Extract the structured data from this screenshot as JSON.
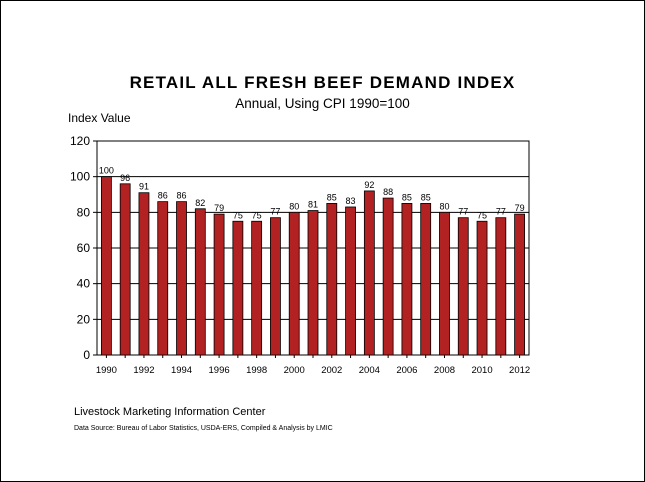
{
  "chart_data": {
    "type": "bar",
    "title": "RETAIL ALL FRESH BEEF DEMAND INDEX",
    "subtitle": "Annual, Using CPI 1990=100",
    "ylabel": "Index Value",
    "xlabel": "",
    "ylim": [
      0,
      120
    ],
    "yticks": [
      0,
      20,
      40,
      60,
      80,
      100,
      120
    ],
    "categories": [
      "1990",
      "1991",
      "1992",
      "1993",
      "1994",
      "1995",
      "1996",
      "1997",
      "1998",
      "1999",
      "2000",
      "2001",
      "2002",
      "2003",
      "2004",
      "2005",
      "2006",
      "2007",
      "2008",
      "2009",
      "2010",
      "2011",
      "2012"
    ],
    "xtick_labels": [
      "1990",
      "1992",
      "1994",
      "1996",
      "1998",
      "2000",
      "2002",
      "2004",
      "2006",
      "2008",
      "2010",
      "2012"
    ],
    "values": [
      100,
      96,
      91,
      86,
      86,
      82,
      79,
      75,
      75,
      77,
      80,
      81,
      85,
      83,
      92,
      88,
      85,
      85,
      80,
      77,
      75,
      77,
      79
    ],
    "grid": true,
    "bar_color": "#b22222",
    "legend": "none"
  },
  "footer": {
    "source_org": "Livestock Marketing Information Center",
    "source_note": "Data Source:  Bureau of Labor Statistics, USDA-ERS, Compiled & Analysis by LMIC"
  }
}
